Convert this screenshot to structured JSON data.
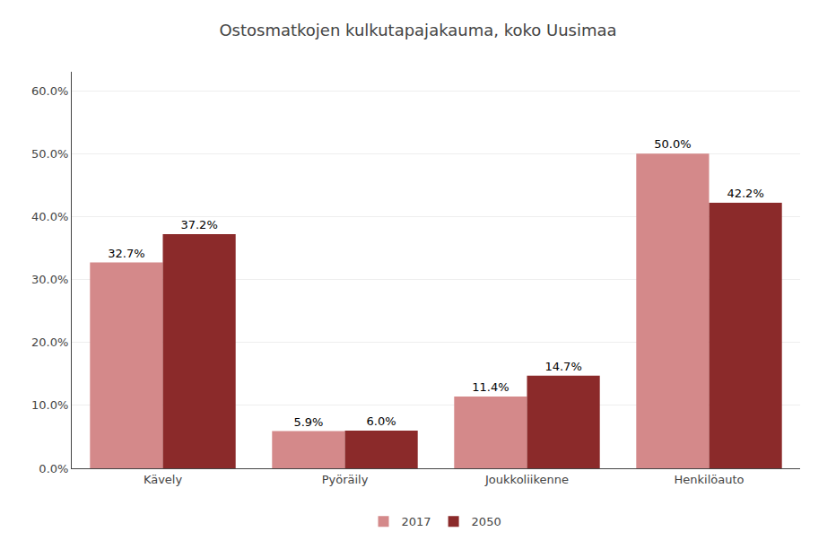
{
  "chart_data": {
    "type": "bar",
    "title": "Ostosmatkojen kulkutapajakauma, koko Uusimaa",
    "categories": [
      "Kävely",
      "Pyöräily",
      "Joukkoliikenne",
      "Henkilöauto"
    ],
    "series": [
      {
        "name": "2017",
        "color": "#D4898A",
        "values": [
          0.327,
          0.059,
          0.114,
          0.5
        ],
        "value_labels": [
          "32.7%",
          "5.9%",
          "11.4%",
          "50.0%"
        ]
      },
      {
        "name": "2050",
        "color": "#8B2A2A",
        "values": [
          0.372,
          0.06,
          0.147,
          0.422
        ],
        "value_labels": [
          "37.2%",
          "6.0%",
          "14.7%",
          "42.2%"
        ]
      }
    ],
    "ylim": [
      0,
      0.63
    ],
    "yticks": [
      {
        "value": 0.0,
        "label": "0.0%"
      },
      {
        "value": 0.1,
        "label": "10.0%"
      },
      {
        "value": 0.2,
        "label": "20.0%"
      },
      {
        "value": 0.3,
        "label": "30.0%"
      },
      {
        "value": 0.4,
        "label": "40.0%"
      },
      {
        "value": 0.5,
        "label": "50.0%"
      },
      {
        "value": 0.6,
        "label": "60.0%"
      }
    ],
    "grid": true,
    "legend": "bottom",
    "data_labels": true
  }
}
